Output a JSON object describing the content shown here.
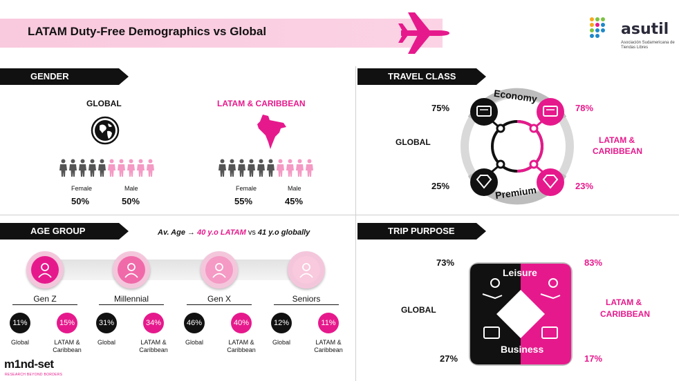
{
  "header": {
    "title": "LATAM Duty-Free Demographics vs Global",
    "plane_icon": "airplane-icon"
  },
  "logo": {
    "word": "asutil",
    "subtitle": "Asociación Sudamericana de Tiendas Libres",
    "dot_colors": [
      "#f6a81c",
      "#7cc242",
      "#e6198c",
      "#1e88c9"
    ]
  },
  "colors": {
    "accent": "#e6198c",
    "dark": "#111111",
    "pill": "#f4c6dc"
  },
  "gender": {
    "tag": "GENDER",
    "global": {
      "heading": "GLOBAL",
      "female_label": "Female",
      "male_label": "Male",
      "female_pct": "50%",
      "male_pct": "50%"
    },
    "latam": {
      "heading": "LATAM & CARIBBEAN",
      "female_label": "Female",
      "male_label": "Male",
      "female_pct": "55%",
      "male_pct": "45%"
    }
  },
  "travel_class": {
    "tag": "TRAVEL CLASS",
    "global_label": "GLOBAL",
    "latam_label_1": "LATAM &",
    "latam_label_2": "CARIBBEAN",
    "economy_label": "Economy",
    "premium_label": "Premium",
    "global_economy": "75%",
    "global_premium": "25%",
    "latam_economy": "78%",
    "latam_premium": "23%"
  },
  "age_group": {
    "tag": "AGE GROUP",
    "avg_prefix": "Av. Age",
    "avg_latam": "40 y.o LATAM",
    "avg_vs": "vs",
    "avg_global": "41 y.o globally",
    "groups": [
      {
        "name": "Gen Z",
        "global": "11%",
        "latam": "15%",
        "global_label": "Global",
        "latam_label_1": "LATAM &",
        "latam_label_2": "Caribbean"
      },
      {
        "name": "Millennial",
        "global": "31%",
        "latam": "34%",
        "global_label": "Global",
        "latam_label_1": "LATAM &",
        "latam_label_2": "Caribbean"
      },
      {
        "name": "Gen X",
        "global": "46%",
        "latam": "40%",
        "global_label": "Global",
        "latam_label_1": "LATAM &",
        "latam_label_2": "Caribbean"
      },
      {
        "name": "Seniors",
        "global": "12%",
        "latam": "11%",
        "global_label": "Global",
        "latam_label_1": "LATAM &",
        "latam_label_2": "Caribbean"
      }
    ]
  },
  "trip_purpose": {
    "tag": "TRIP PURPOSE",
    "global_label": "GLOBAL",
    "latam_label_1": "LATAM &",
    "latam_label_2": "CARIBBEAN",
    "leisure_label": "Leisure",
    "business_label": "Business",
    "global_leisure": "73%",
    "global_business": "27%",
    "latam_leisure": "83%",
    "latam_business": "17%"
  },
  "footer": {
    "brand": "m1nd-set",
    "tagline": "RESEARCH BEYOND BORDERS"
  }
}
